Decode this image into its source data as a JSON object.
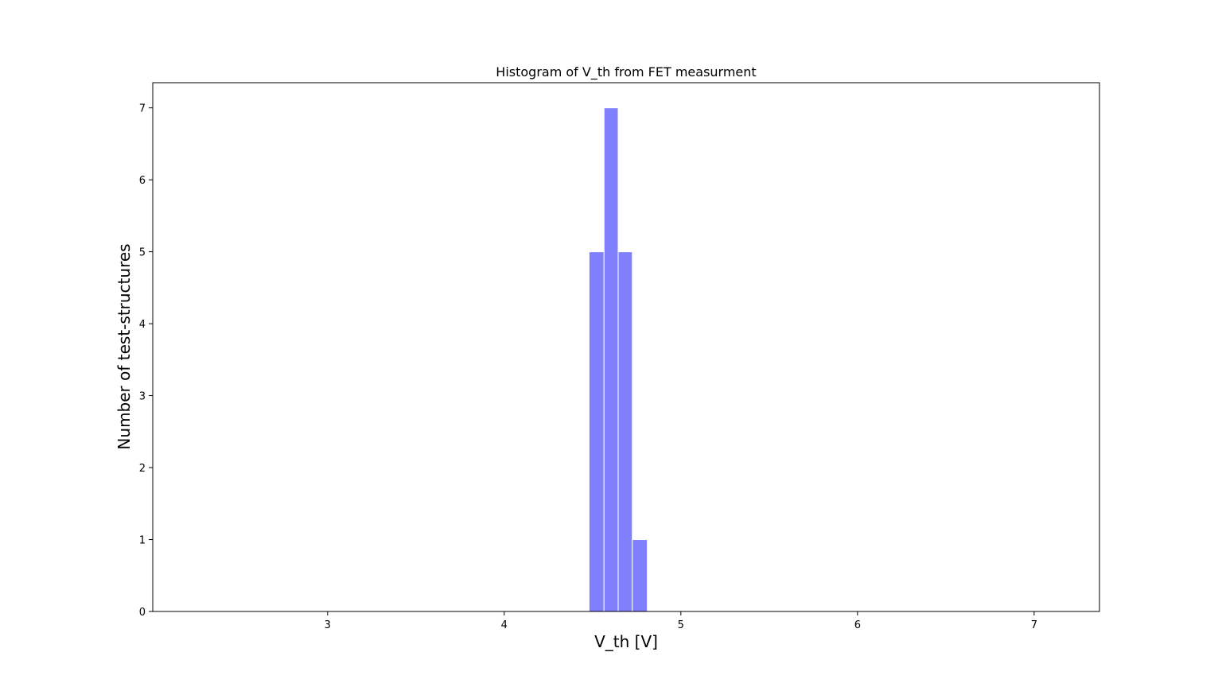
{
  "chart_data": {
    "type": "bar",
    "title": "Histogram of V_th from FET measurment",
    "xlabel": "V_th [V]",
    "ylabel": "Number of test-structures",
    "xlim": [
      2.01,
      7.37
    ],
    "ylim": [
      0,
      7.35
    ],
    "x_ticks": [
      3,
      4,
      5,
      6,
      7
    ],
    "y_ticks": [
      0,
      1,
      2,
      3,
      4,
      5,
      6,
      7
    ],
    "bins": [
      {
        "x0": 4.48,
        "x1": 4.565,
        "count": 5
      },
      {
        "x0": 4.565,
        "x1": 4.645,
        "count": 7
      },
      {
        "x0": 4.645,
        "x1": 4.725,
        "count": 5
      },
      {
        "x0": 4.725,
        "x1": 4.81,
        "count": 1
      }
    ],
    "grid": false,
    "colors": {
      "bar_fill": "#8080ff",
      "bar_edge": "#ffffff",
      "axes": "#000000"
    }
  }
}
